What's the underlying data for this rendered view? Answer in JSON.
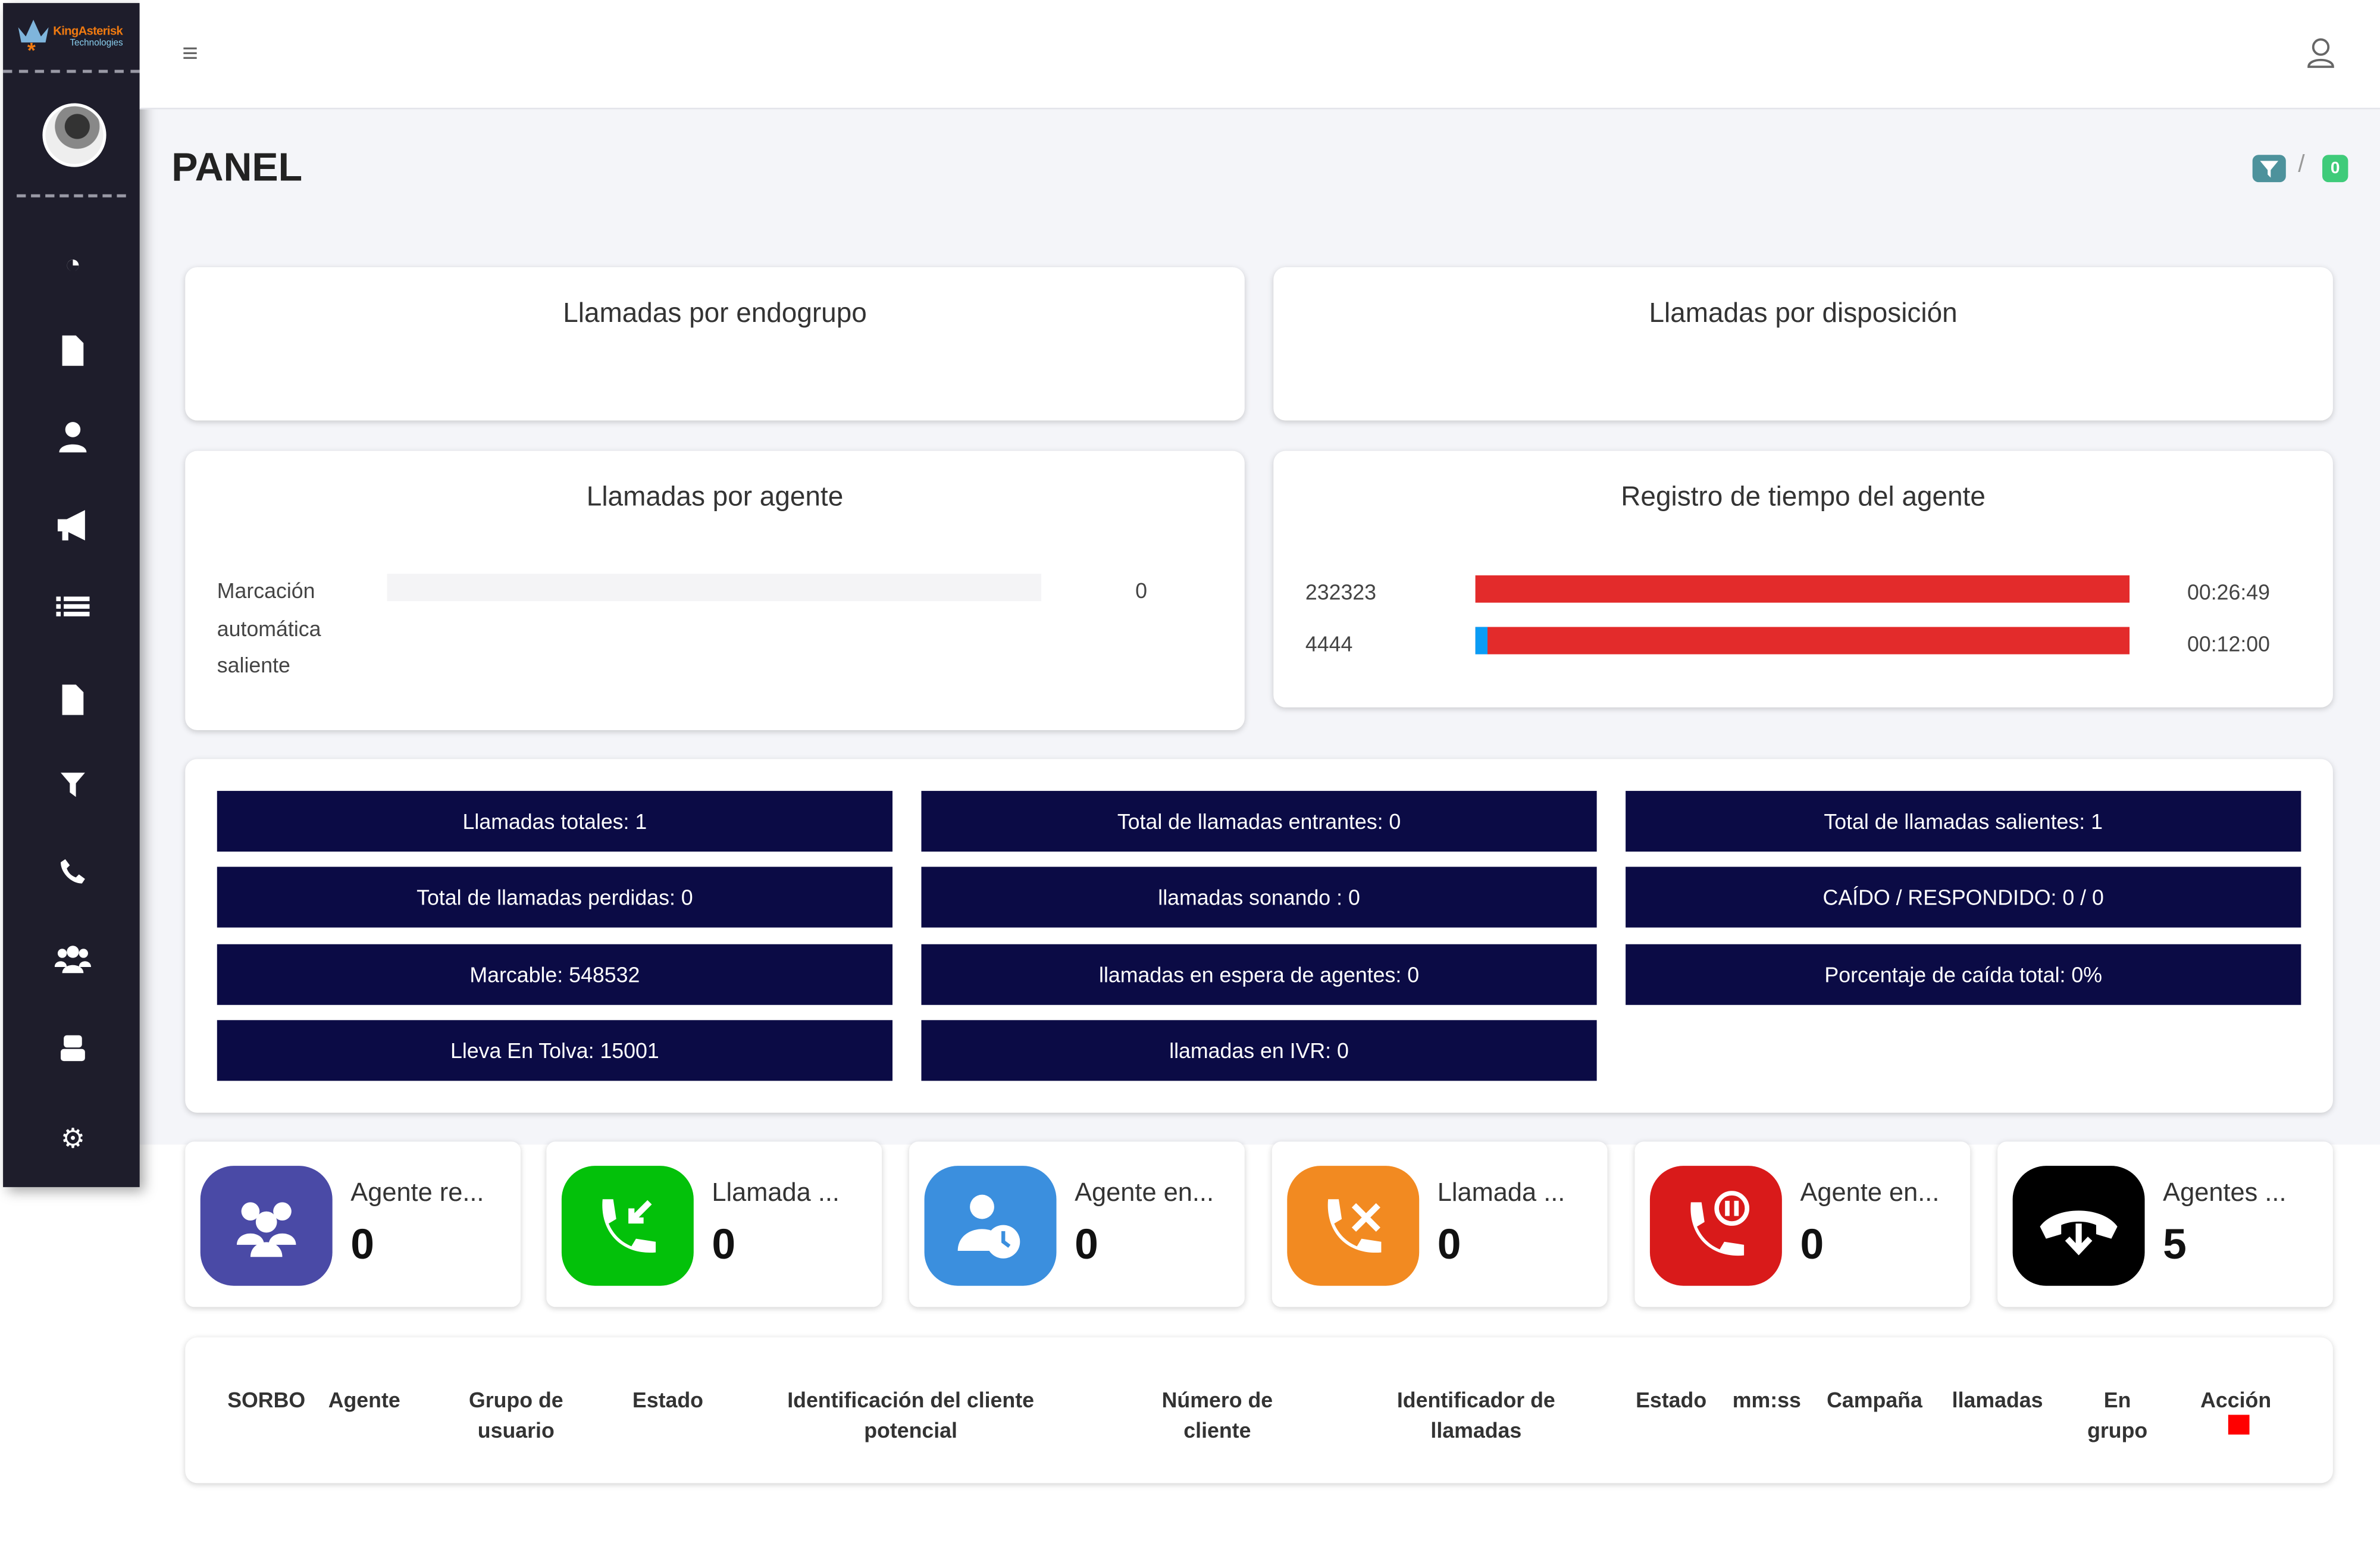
{
  "brand": {
    "logo_name": "KingAsterisk",
    "logo_sub": "Technologies"
  },
  "sidebar": {
    "icons": [
      "dashboard-gauge-icon",
      "document-icon",
      "user-icon",
      "megaphone-icon",
      "list-icon",
      "file-icon",
      "filter-icon",
      "phone-icon",
      "users-group-icon",
      "robot-icon",
      "gear-icon"
    ]
  },
  "header": {
    "title": "PANEL",
    "breadcrumb_badge": "0"
  },
  "cards": {
    "endogroup_title": "Llamadas por endogrupo",
    "disposition_title": "Llamadas por disposición",
    "agent_calls": {
      "title": "Llamadas por agente",
      "rows": [
        {
          "label": "Marcación automática saliente",
          "value": "0",
          "fill": 0
        }
      ]
    },
    "agent_time": {
      "title": "Registro de tiempo del agente",
      "rows": [
        {
          "agent": "232323",
          "time": "00:26:49",
          "blue_fraction": 0,
          "red_fraction": 1
        },
        {
          "agent": "4444",
          "time": "00:12:00",
          "blue_fraction": 0.02,
          "red_fraction": 0.98
        }
      ],
      "colors": {
        "red": "#e32b2b",
        "blue": "#0a9cf5"
      }
    }
  },
  "stats": [
    [
      "Llamadas totales: 1",
      "Total de llamadas entrantes: 0",
      "Total de llamadas salientes: 1"
    ],
    [
      "Total de llamadas perdidas: 0",
      "llamadas sonando : 0",
      "CAÍDO / RESPONDIDO: 0 / 0"
    ],
    [
      "Marcable: 548532",
      "llamadas en espera de agentes: 0",
      "Porcentaje de caída total: 0%"
    ],
    [
      "Lleva En Tolva: 15001",
      "llamadas en IVR: 0"
    ]
  ],
  "tiles": [
    {
      "label": "Agente re...",
      "value": "0",
      "color": "#4a4aa6",
      "icon": "users-icon"
    },
    {
      "label": "Llamada ...",
      "value": "0",
      "color": "#03c10a",
      "icon": "incoming-call-icon"
    },
    {
      "label": "Agente en...",
      "value": "0",
      "color": "#3b8fde",
      "icon": "user-clock-icon"
    },
    {
      "label": "Llamada ...",
      "value": "0",
      "color": "#f28a21",
      "icon": "missed-call-icon"
    },
    {
      "label": "Agente en...",
      "value": "0",
      "color": "#d91a1a",
      "icon": "call-paused-icon"
    },
    {
      "label": "Agentes ...",
      "value": "5",
      "color": "#000000",
      "icon": "hangup-icon"
    }
  ],
  "table": {
    "headers": [
      "SORBO",
      "Agente",
      "Grupo de usuario",
      "Estado",
      "Identificación del cliente potencial",
      "Número de cliente",
      "Identificador de llamadas",
      "Estado",
      "mm:ss",
      "Campaña",
      "llamadas",
      "En grupo",
      "Acción"
    ]
  }
}
